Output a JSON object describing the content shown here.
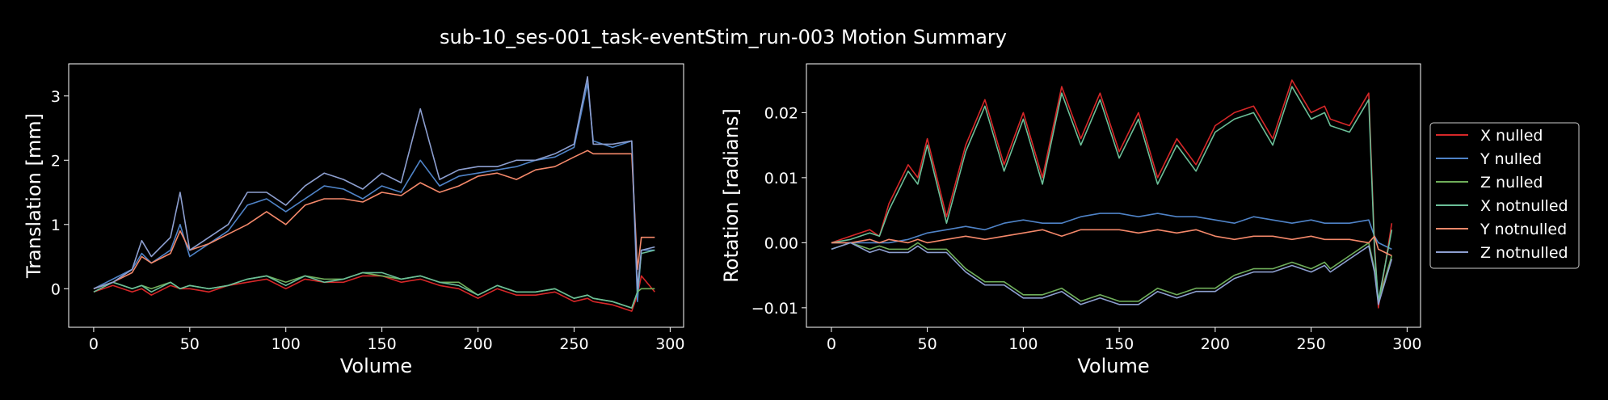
{
  "figure": {
    "title": "sub-10_ses-001_task-eventStim_run-003 Motion Summary",
    "background": "#000000",
    "text_color": "#ffffff"
  },
  "legend": {
    "placement": "right, outside plots",
    "entries": [
      {
        "label": "X nulled",
        "color": "#d62728"
      },
      {
        "label": "Y nulled",
        "color": "#4f83c7"
      },
      {
        "label": "Z nulled",
        "color": "#6fae5a"
      },
      {
        "label": "X notnulled",
        "color": "#6bbf98"
      },
      {
        "label": "Y notnulled",
        "color": "#f4886a"
      },
      {
        "label": "Z notnulled",
        "color": "#8d9fd0"
      }
    ]
  },
  "chart_data": [
    {
      "type": "line",
      "xlabel": "Volume",
      "ylabel": "Translation [mm]",
      "xlim": [
        -13,
        307
      ],
      "ylim": [
        -0.6,
        3.5
      ],
      "xticks": [
        0,
        50,
        100,
        150,
        200,
        250,
        300
      ],
      "yticks": [
        0,
        1,
        2,
        3
      ],
      "grid": false,
      "x": [
        0,
        10,
        20,
        25,
        30,
        40,
        45,
        50,
        60,
        70,
        80,
        90,
        100,
        110,
        120,
        130,
        140,
        150,
        160,
        170,
        180,
        190,
        200,
        210,
        220,
        230,
        240,
        250,
        257,
        260,
        270,
        280,
        283,
        285,
        292
      ],
      "series": [
        {
          "name": "X nulled",
          "color": "#d62728",
          "values": [
            -0.05,
            0.05,
            -0.05,
            0.0,
            -0.1,
            0.05,
            0.0,
            0.0,
            -0.05,
            0.05,
            0.1,
            0.15,
            0.0,
            0.15,
            0.1,
            0.1,
            0.2,
            0.2,
            0.1,
            0.15,
            0.05,
            0.0,
            -0.15,
            0.0,
            -0.1,
            -0.1,
            -0.05,
            -0.2,
            -0.15,
            -0.2,
            -0.25,
            -0.35,
            -0.1,
            0.2,
            -0.05
          ]
        },
        {
          "name": "Y nulled",
          "color": "#4f83c7",
          "values": [
            0.0,
            0.15,
            0.3,
            0.55,
            0.4,
            0.6,
            1.0,
            0.5,
            0.7,
            0.9,
            1.3,
            1.4,
            1.2,
            1.4,
            1.6,
            1.55,
            1.4,
            1.6,
            1.5,
            2.0,
            1.6,
            1.75,
            1.8,
            1.85,
            1.9,
            2.0,
            2.05,
            2.2,
            3.2,
            2.3,
            2.2,
            2.3,
            -0.2,
            0.6,
            0.6
          ]
        },
        {
          "name": "Z nulled",
          "color": "#6fae5a",
          "values": [
            0.0,
            0.1,
            0.0,
            0.05,
            0.0,
            0.1,
            0.0,
            0.05,
            0.0,
            0.05,
            0.15,
            0.2,
            0.1,
            0.2,
            0.15,
            0.15,
            0.25,
            0.2,
            0.15,
            0.2,
            0.1,
            0.1,
            -0.1,
            0.05,
            -0.05,
            -0.05,
            0.0,
            -0.15,
            -0.1,
            -0.15,
            -0.2,
            -0.3,
            -0.05,
            0.0,
            0.0
          ]
        },
        {
          "name": "X notnulled",
          "color": "#6bbf98",
          "values": [
            -0.05,
            0.1,
            0.0,
            0.05,
            -0.05,
            0.1,
            0.0,
            0.05,
            0.0,
            0.05,
            0.15,
            0.2,
            0.05,
            0.2,
            0.1,
            0.15,
            0.25,
            0.25,
            0.15,
            0.2,
            0.1,
            0.05,
            -0.1,
            0.05,
            -0.05,
            -0.05,
            0.0,
            -0.15,
            -0.1,
            -0.15,
            -0.2,
            -0.3,
            -0.05,
            0.55,
            0.6
          ]
        },
        {
          "name": "Y notnulled",
          "color": "#f4886a",
          "values": [
            0.0,
            0.1,
            0.25,
            0.5,
            0.4,
            0.55,
            0.9,
            0.6,
            0.7,
            0.85,
            1.0,
            1.2,
            1.0,
            1.3,
            1.4,
            1.4,
            1.35,
            1.5,
            1.45,
            1.65,
            1.5,
            1.6,
            1.75,
            1.8,
            1.7,
            1.85,
            1.9,
            2.05,
            2.15,
            2.1,
            2.1,
            2.1,
            0.3,
            0.8,
            0.8
          ]
        },
        {
          "name": "Z notnulled",
          "color": "#8d9fd0",
          "values": [
            0.0,
            0.1,
            0.3,
            0.75,
            0.5,
            0.8,
            1.5,
            0.6,
            0.8,
            1.0,
            1.5,
            1.5,
            1.3,
            1.6,
            1.8,
            1.7,
            1.55,
            1.8,
            1.65,
            2.8,
            1.7,
            1.85,
            1.9,
            1.9,
            2.0,
            2.0,
            2.1,
            2.25,
            3.3,
            2.25,
            2.25,
            2.3,
            0.0,
            0.6,
            0.65
          ]
        }
      ]
    },
    {
      "type": "line",
      "xlabel": "Volume",
      "ylabel": "Rotation [radians]",
      "xlim": [
        -13,
        307
      ],
      "ylim": [
        -0.013,
        0.0275
      ],
      "xticks": [
        0,
        50,
        100,
        150,
        200,
        250,
        300
      ],
      "yticks": [
        -0.01,
        0.0,
        0.01,
        0.02
      ],
      "ytick_labels": [
        "−0.01",
        "0.00",
        "0.01",
        "0.02"
      ],
      "grid": false,
      "x": [
        0,
        10,
        20,
        25,
        30,
        40,
        45,
        50,
        60,
        70,
        80,
        90,
        100,
        110,
        120,
        130,
        140,
        150,
        160,
        170,
        180,
        190,
        200,
        210,
        220,
        230,
        240,
        250,
        257,
        260,
        270,
        280,
        283,
        285,
        292
      ],
      "series": [
        {
          "name": "X nulled",
          "color": "#d62728",
          "values": [
            0.0,
            0.001,
            0.002,
            0.001,
            0.006,
            0.012,
            0.01,
            0.016,
            0.004,
            0.015,
            0.022,
            0.012,
            0.02,
            0.01,
            0.024,
            0.016,
            0.023,
            0.014,
            0.02,
            0.01,
            0.016,
            0.012,
            0.018,
            0.02,
            0.021,
            0.016,
            0.025,
            0.02,
            0.021,
            0.019,
            0.018,
            0.023,
            0.0,
            -0.01,
            0.003
          ]
        },
        {
          "name": "Y nulled",
          "color": "#4f83c7",
          "values": [
            0.0,
            0.0,
            0.0,
            0.0,
            0.0,
            0.0005,
            0.001,
            0.0015,
            0.002,
            0.0025,
            0.002,
            0.003,
            0.0035,
            0.003,
            0.003,
            0.004,
            0.0045,
            0.0045,
            0.004,
            0.0045,
            0.004,
            0.004,
            0.0035,
            0.003,
            0.004,
            0.0035,
            0.003,
            0.0035,
            0.003,
            0.003,
            0.003,
            0.0035,
            0.001,
            0.0,
            -0.001
          ]
        },
        {
          "name": "Z nulled",
          "color": "#6fae5a",
          "values": [
            -0.001,
            0.0,
            -0.001,
            -0.0005,
            -0.001,
            -0.001,
            0.0,
            -0.001,
            -0.001,
            -0.004,
            -0.006,
            -0.006,
            -0.008,
            -0.008,
            -0.007,
            -0.009,
            -0.008,
            -0.009,
            -0.009,
            -0.007,
            -0.008,
            -0.007,
            -0.007,
            -0.005,
            -0.004,
            -0.004,
            -0.003,
            -0.004,
            -0.003,
            -0.004,
            -0.002,
            0.0,
            -0.004,
            -0.009,
            -0.002
          ]
        },
        {
          "name": "X notnulled",
          "color": "#6bbf98",
          "values": [
            0.0,
            0.0005,
            0.0015,
            0.001,
            0.005,
            0.011,
            0.009,
            0.015,
            0.003,
            0.014,
            0.021,
            0.011,
            0.019,
            0.009,
            0.023,
            0.015,
            0.022,
            0.013,
            0.019,
            0.009,
            0.015,
            0.011,
            0.017,
            0.019,
            0.02,
            0.015,
            0.024,
            0.019,
            0.02,
            0.018,
            0.017,
            0.022,
            -0.001,
            -0.009,
            0.002
          ]
        },
        {
          "name": "Y notnulled",
          "color": "#f4886a",
          "values": [
            0.0,
            0.0,
            0.0005,
            0.0,
            0.0005,
            0.0,
            0.0005,
            0.0,
            0.0005,
            0.001,
            0.0005,
            0.001,
            0.0015,
            0.002,
            0.001,
            0.002,
            0.002,
            0.002,
            0.0015,
            0.002,
            0.0015,
            0.002,
            0.001,
            0.0005,
            0.001,
            0.001,
            0.0005,
            0.001,
            0.0005,
            0.0005,
            0.0005,
            0.0,
            0.001,
            -0.001,
            -0.002
          ]
        },
        {
          "name": "Z notnulled",
          "color": "#8d9fd0",
          "values": [
            -0.001,
            0.0,
            -0.0015,
            -0.001,
            -0.0015,
            -0.0015,
            -0.0005,
            -0.0015,
            -0.0015,
            -0.0045,
            -0.0065,
            -0.0065,
            -0.0085,
            -0.0085,
            -0.0075,
            -0.0095,
            -0.0085,
            -0.0095,
            -0.0095,
            -0.0075,
            -0.0085,
            -0.0075,
            -0.0075,
            -0.0055,
            -0.0045,
            -0.0045,
            -0.0035,
            -0.0045,
            -0.0035,
            -0.0045,
            -0.0025,
            -0.0005,
            -0.0045,
            -0.0095,
            -0.0025
          ]
        }
      ]
    }
  ]
}
